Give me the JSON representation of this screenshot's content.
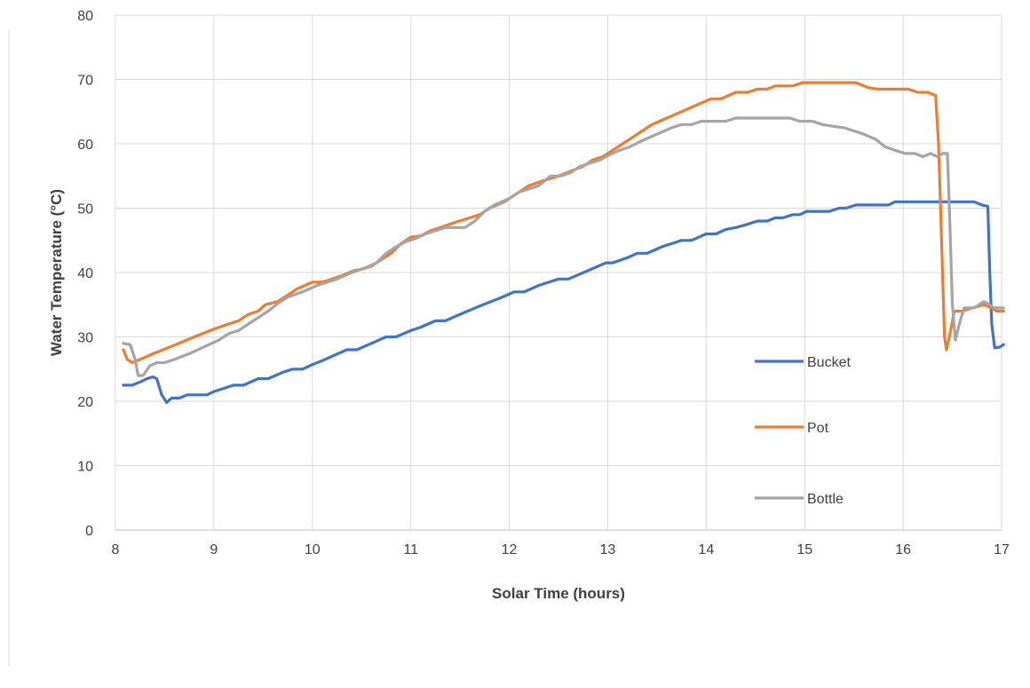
{
  "chart_data": {
    "type": "line",
    "xlabel": "Solar Time (hours)",
    "ylabel": "Water Temperature (°C)",
    "xlim": [
      8,
      17
    ],
    "ylim": [
      0,
      80
    ],
    "x_ticks": [
      8,
      9,
      10,
      11,
      12,
      13,
      14,
      15,
      16,
      17
    ],
    "y_ticks": [
      0,
      10,
      20,
      30,
      40,
      50,
      60,
      70,
      80
    ],
    "grid": true,
    "legend_position": "right",
    "series": [
      {
        "name": "Bucket",
        "color": "#4472C4",
        "points": [
          [
            8.08,
            22.5
          ],
          [
            8.17,
            22.5
          ],
          [
            8.25,
            23
          ],
          [
            8.32,
            23.5
          ],
          [
            8.38,
            23.8
          ],
          [
            8.42,
            23.5
          ],
          [
            8.47,
            21
          ],
          [
            8.52,
            19.8
          ],
          [
            8.57,
            20.5
          ],
          [
            8.65,
            20.5
          ],
          [
            8.73,
            21
          ],
          [
            8.83,
            21
          ],
          [
            8.93,
            21
          ],
          [
            9,
            21.5
          ],
          [
            9.1,
            22
          ],
          [
            9.2,
            22.5
          ],
          [
            9.3,
            22.5
          ],
          [
            9.45,
            23.5
          ],
          [
            9.55,
            23.5
          ],
          [
            9.7,
            24.5
          ],
          [
            9.8,
            25
          ],
          [
            9.9,
            25
          ],
          [
            10,
            25.7
          ],
          [
            10.1,
            26.3
          ],
          [
            10.2,
            27
          ],
          [
            10.35,
            28
          ],
          [
            10.45,
            28
          ],
          [
            10.6,
            29
          ],
          [
            10.75,
            30
          ],
          [
            10.85,
            30
          ],
          [
            11,
            31
          ],
          [
            11.1,
            31.5
          ],
          [
            11.25,
            32.5
          ],
          [
            11.35,
            32.5
          ],
          [
            11.5,
            33.5
          ],
          [
            11.7,
            34.8
          ],
          [
            11.9,
            36
          ],
          [
            12.05,
            37
          ],
          [
            12.15,
            37
          ],
          [
            12.3,
            38
          ],
          [
            12.5,
            39
          ],
          [
            12.6,
            39
          ],
          [
            12.8,
            40.3
          ],
          [
            12.98,
            41.5
          ],
          [
            13.05,
            41.5
          ],
          [
            13.2,
            42.3
          ],
          [
            13.3,
            43
          ],
          [
            13.4,
            43
          ],
          [
            13.55,
            44
          ],
          [
            13.75,
            45
          ],
          [
            13.85,
            45
          ],
          [
            14,
            46
          ],
          [
            14.1,
            46
          ],
          [
            14.2,
            46.7
          ],
          [
            14.3,
            47
          ],
          [
            14.4,
            47.4
          ],
          [
            14.52,
            48
          ],
          [
            14.62,
            48
          ],
          [
            14.7,
            48.5
          ],
          [
            14.78,
            48.5
          ],
          [
            14.88,
            49
          ],
          [
            14.95,
            49
          ],
          [
            15.02,
            49.5
          ],
          [
            15.12,
            49.5
          ],
          [
            15.25,
            49.5
          ],
          [
            15.35,
            50
          ],
          [
            15.42,
            50
          ],
          [
            15.52,
            50.5
          ],
          [
            15.65,
            50.5
          ],
          [
            15.85,
            50.5
          ],
          [
            15.92,
            51
          ],
          [
            16.05,
            51
          ],
          [
            16.2,
            51
          ],
          [
            16.4,
            51
          ],
          [
            16.6,
            51
          ],
          [
            16.72,
            51
          ],
          [
            16.8,
            50.5
          ],
          [
            16.86,
            50.3
          ],
          [
            16.88,
            40
          ],
          [
            16.9,
            32
          ],
          [
            16.93,
            28.3
          ],
          [
            16.98,
            28.4
          ],
          [
            17.02,
            28.8
          ]
        ]
      },
      {
        "name": "Pot",
        "color": "#ED7D31",
        "points": [
          [
            8.08,
            28
          ],
          [
            8.12,
            26.5
          ],
          [
            8.17,
            26
          ],
          [
            8.25,
            26.5
          ],
          [
            8.4,
            27.5
          ],
          [
            8.6,
            28.7
          ],
          [
            8.8,
            30
          ],
          [
            9,
            31.2
          ],
          [
            9.15,
            32
          ],
          [
            9.25,
            32.5
          ],
          [
            9.35,
            33.5
          ],
          [
            9.45,
            34
          ],
          [
            9.52,
            35
          ],
          [
            9.65,
            35.5
          ],
          [
            9.75,
            36.5
          ],
          [
            9.85,
            37.5
          ],
          [
            10,
            38.5
          ],
          [
            10.1,
            38.5
          ],
          [
            10.2,
            39
          ],
          [
            10.3,
            39.5
          ],
          [
            10.42,
            40.3
          ],
          [
            10.5,
            40.5
          ],
          [
            10.6,
            41
          ],
          [
            10.7,
            42
          ],
          [
            10.8,
            43
          ],
          [
            10.9,
            44.5
          ],
          [
            11,
            45.5
          ],
          [
            11.1,
            45.7
          ],
          [
            11.2,
            46.5
          ],
          [
            11.3,
            47
          ],
          [
            11.45,
            47.8
          ],
          [
            11.6,
            48.5
          ],
          [
            11.7,
            49
          ],
          [
            11.8,
            50
          ],
          [
            11.95,
            51
          ],
          [
            12.1,
            52.5
          ],
          [
            12.2,
            53.5
          ],
          [
            12.35,
            54.3
          ],
          [
            12.5,
            55
          ],
          [
            12.6,
            55.6
          ],
          [
            12.75,
            56.5
          ],
          [
            12.85,
            57.5
          ],
          [
            12.95,
            58
          ],
          [
            13.05,
            59
          ],
          [
            13.15,
            60
          ],
          [
            13.25,
            61
          ],
          [
            13.35,
            62
          ],
          [
            13.45,
            63
          ],
          [
            13.6,
            64
          ],
          [
            13.75,
            65
          ],
          [
            13.9,
            66
          ],
          [
            14.05,
            67
          ],
          [
            14.15,
            67
          ],
          [
            14.3,
            68
          ],
          [
            14.42,
            68
          ],
          [
            14.52,
            68.5
          ],
          [
            14.62,
            68.5
          ],
          [
            14.7,
            69
          ],
          [
            14.88,
            69
          ],
          [
            14.98,
            69.5
          ],
          [
            15.25,
            69.5
          ],
          [
            15.52,
            69.5
          ],
          [
            15.65,
            68.7
          ],
          [
            15.75,
            68.5
          ],
          [
            16.05,
            68.5
          ],
          [
            16.15,
            68
          ],
          [
            16.25,
            68
          ],
          [
            16.33,
            67.5
          ],
          [
            16.36,
            60
          ],
          [
            16.39,
            45
          ],
          [
            16.42,
            30
          ],
          [
            16.44,
            28
          ],
          [
            16.47,
            30
          ],
          [
            16.52,
            34
          ],
          [
            16.6,
            34
          ],
          [
            16.7,
            34.5
          ],
          [
            16.82,
            35
          ],
          [
            16.9,
            34.5
          ],
          [
            16.95,
            34
          ],
          [
            17.02,
            34
          ]
        ]
      },
      {
        "name": "Bottle",
        "color": "#A5A5A5",
        "points": [
          [
            8.08,
            29
          ],
          [
            8.15,
            28.8
          ],
          [
            8.2,
            26.5
          ],
          [
            8.23,
            24
          ],
          [
            8.28,
            24
          ],
          [
            8.35,
            25.5
          ],
          [
            8.42,
            26
          ],
          [
            8.5,
            26
          ],
          [
            8.6,
            26.5
          ],
          [
            8.75,
            27.4
          ],
          [
            8.95,
            28.8
          ],
          [
            9.05,
            29.5
          ],
          [
            9.15,
            30.5
          ],
          [
            9.25,
            31
          ],
          [
            9.35,
            32
          ],
          [
            9.45,
            33
          ],
          [
            9.55,
            34
          ],
          [
            9.65,
            35.2
          ],
          [
            9.75,
            36.2
          ],
          [
            9.9,
            37
          ],
          [
            10.05,
            38
          ],
          [
            10.15,
            38.5
          ],
          [
            10.25,
            39
          ],
          [
            10.4,
            40
          ],
          [
            10.55,
            40.8
          ],
          [
            10.65,
            41.5
          ],
          [
            10.75,
            43
          ],
          [
            10.85,
            44
          ],
          [
            10.95,
            44.8
          ],
          [
            11.05,
            45.3
          ],
          [
            11.15,
            46
          ],
          [
            11.25,
            46.5
          ],
          [
            11.35,
            47
          ],
          [
            11.45,
            47
          ],
          [
            11.55,
            47
          ],
          [
            11.65,
            48
          ],
          [
            11.75,
            49.5
          ],
          [
            11.85,
            50.5
          ],
          [
            12,
            51.5
          ],
          [
            12.1,
            52.5
          ],
          [
            12.2,
            53
          ],
          [
            12.3,
            53.5
          ],
          [
            12.42,
            55
          ],
          [
            12.52,
            55
          ],
          [
            12.62,
            55.5
          ],
          [
            12.72,
            56.5
          ],
          [
            12.82,
            57
          ],
          [
            12.92,
            57.5
          ],
          [
            13.02,
            58.3
          ],
          [
            13.12,
            59
          ],
          [
            13.22,
            59.5
          ],
          [
            13.35,
            60.5
          ],
          [
            13.5,
            61.5
          ],
          [
            13.65,
            62.5
          ],
          [
            13.75,
            63
          ],
          [
            13.85,
            63
          ],
          [
            13.95,
            63.5
          ],
          [
            14.05,
            63.5
          ],
          [
            14.2,
            63.5
          ],
          [
            14.3,
            64
          ],
          [
            14.5,
            64
          ],
          [
            14.7,
            64
          ],
          [
            14.85,
            64
          ],
          [
            14.95,
            63.5
          ],
          [
            15.08,
            63.5
          ],
          [
            15.18,
            63
          ],
          [
            15.3,
            62.7
          ],
          [
            15.4,
            62.5
          ],
          [
            15.5,
            62
          ],
          [
            15.6,
            61.5
          ],
          [
            15.72,
            60.7
          ],
          [
            15.82,
            59.5
          ],
          [
            15.92,
            59
          ],
          [
            16.02,
            58.5
          ],
          [
            16.12,
            58.5
          ],
          [
            16.2,
            58
          ],
          [
            16.28,
            58.5
          ],
          [
            16.35,
            58
          ],
          [
            16.4,
            58.5
          ],
          [
            16.45,
            58.5
          ],
          [
            16.47,
            50
          ],
          [
            16.5,
            35
          ],
          [
            16.53,
            29.5
          ],
          [
            16.58,
            32.5
          ],
          [
            16.62,
            34.5
          ],
          [
            16.72,
            34.5
          ],
          [
            16.82,
            35.5
          ],
          [
            16.88,
            35
          ],
          [
            16.92,
            34.5
          ],
          [
            17.02,
            34.5
          ]
        ]
      }
    ]
  }
}
